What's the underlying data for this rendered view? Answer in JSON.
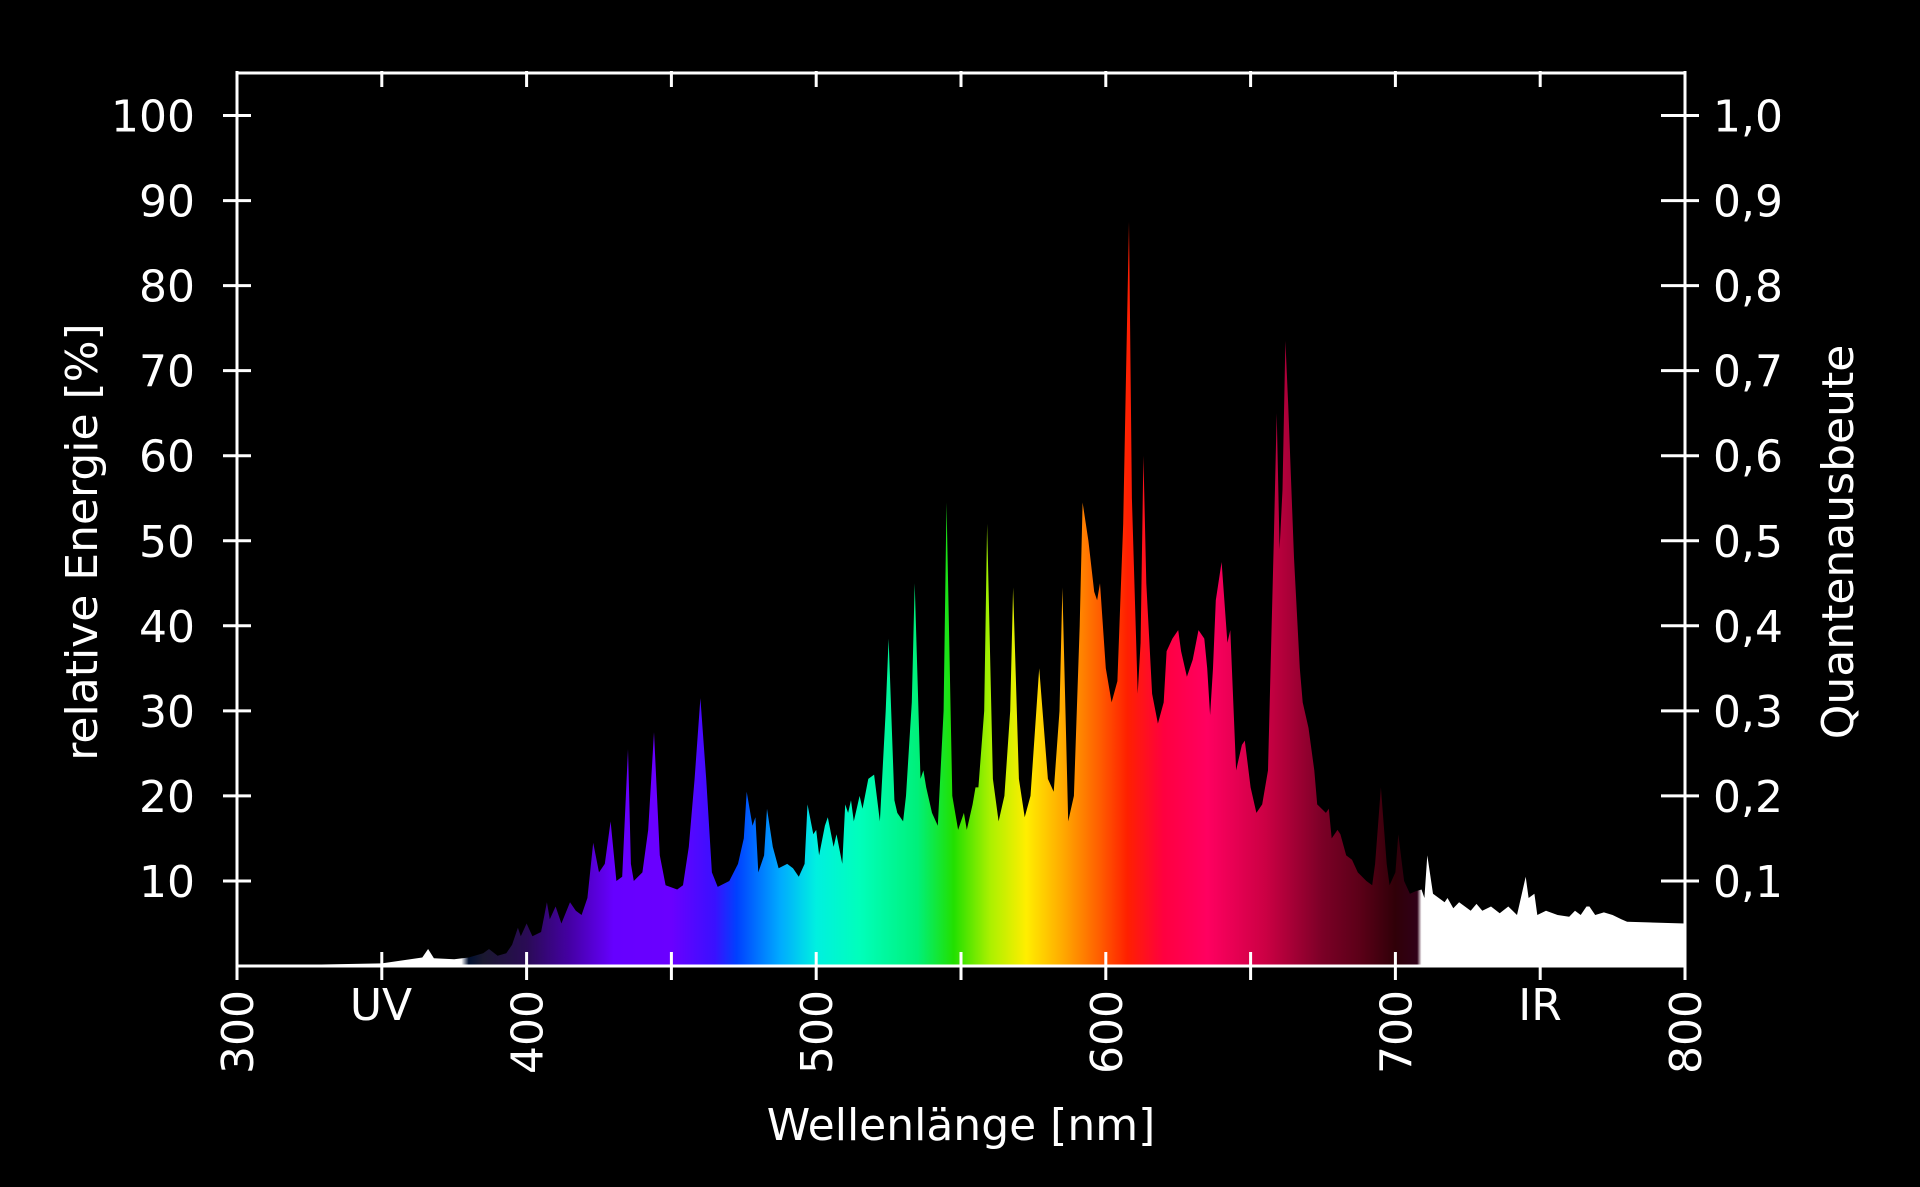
{
  "chart_data": {
    "type": "area",
    "xlabel": "Wellenlänge [nm]",
    "ylabel": "relative Energie [%]",
    "y2label": "Quantenausbeute",
    "xlim": [
      300,
      800
    ],
    "ylim": [
      0,
      105
    ],
    "y2lim": [
      0,
      1.05
    ],
    "x_ticks": [
      "300",
      "400",
      "500",
      "600",
      "700",
      "800"
    ],
    "y_ticks": [
      "10",
      "20",
      "30",
      "40",
      "50",
      "60",
      "70",
      "80",
      "90",
      "100"
    ],
    "y2_ticks": [
      "0,1",
      "0,2",
      "0,3",
      "0,4",
      "0,5",
      "0,6",
      "0,7",
      "0,8",
      "0,9",
      "1,0"
    ],
    "band_labels": [
      "UV",
      "IR"
    ],
    "background": "#000000",
    "outside_visible_color": "#ffffff",
    "visible_range_nm": [
      380,
      710
    ],
    "spectrum": [
      [
        300,
        0
      ],
      [
        350,
        0.3
      ],
      [
        364,
        1.0
      ],
      [
        366,
        2.0
      ],
      [
        368,
        0.9
      ],
      [
        375,
        0.8
      ],
      [
        380,
        1.0
      ],
      [
        385,
        1.5
      ],
      [
        387,
        2.0
      ],
      [
        390,
        1.2
      ],
      [
        393,
        1.5
      ],
      [
        395,
        2.5
      ],
      [
        397,
        4.5
      ],
      [
        398,
        3.5
      ],
      [
        400,
        5.0
      ],
      [
        402,
        3.5
      ],
      [
        405,
        4.0
      ],
      [
        407,
        7.5
      ],
      [
        408,
        5.5
      ],
      [
        410,
        7.0
      ],
      [
        412,
        5.0
      ],
      [
        415,
        7.5
      ],
      [
        417,
        6.5
      ],
      [
        419,
        6.0
      ],
      [
        421,
        8.0
      ],
      [
        423,
        14.5
      ],
      [
        425,
        11.0
      ],
      [
        427,
        12.0
      ],
      [
        429,
        17.0
      ],
      [
        431,
        10.0
      ],
      [
        433,
        10.5
      ],
      [
        435,
        25.5
      ],
      [
        436,
        12.0
      ],
      [
        437,
        10.0
      ],
      [
        440,
        11.0
      ],
      [
        442,
        16.0
      ],
      [
        444,
        27.5
      ],
      [
        446,
        13.0
      ],
      [
        448,
        9.5
      ],
      [
        452,
        9.0
      ],
      [
        454,
        9.5
      ],
      [
        456,
        14.0
      ],
      [
        458,
        22.0
      ],
      [
        460,
        31.5
      ],
      [
        462,
        22.0
      ],
      [
        464,
        11.0
      ],
      [
        466,
        9.3
      ],
      [
        470,
        10.0
      ],
      [
        473,
        12.0
      ],
      [
        475,
        15.0
      ],
      [
        476,
        20.5
      ],
      [
        478,
        16.5
      ],
      [
        479,
        17.5
      ],
      [
        480,
        11.0
      ],
      [
        482,
        13.0
      ],
      [
        483,
        18.5
      ],
      [
        485,
        14.0
      ],
      [
        487,
        11.5
      ],
      [
        490,
        12.0
      ],
      [
        492,
        11.5
      ],
      [
        494,
        10.5
      ],
      [
        496,
        12.0
      ],
      [
        497,
        19.0
      ],
      [
        499,
        15.5
      ],
      [
        500,
        16.0
      ],
      [
        501,
        13.0
      ],
      [
        503,
        16.5
      ],
      [
        504,
        17.5
      ],
      [
        506,
        14.0
      ],
      [
        507,
        15.5
      ],
      [
        509,
        12.0
      ],
      [
        510,
        19.0
      ],
      [
        511,
        18.0
      ],
      [
        512,
        19.5
      ],
      [
        513,
        17.0
      ],
      [
        515,
        20.0
      ],
      [
        516,
        18.5
      ],
      [
        518,
        22.0
      ],
      [
        520,
        22.5
      ],
      [
        522,
        17.0
      ],
      [
        524,
        30.0
      ],
      [
        525,
        38.5
      ],
      [
        527,
        19.5
      ],
      [
        528,
        18.0
      ],
      [
        530,
        17.0
      ],
      [
        531,
        20.0
      ],
      [
        533,
        31.0
      ],
      [
        534,
        45.0
      ],
      [
        536,
        22.0
      ],
      [
        537,
        23.0
      ],
      [
        538,
        21.0
      ],
      [
        540,
        18.0
      ],
      [
        542,
        16.5
      ],
      [
        544,
        30.0
      ],
      [
        545,
        54.5
      ],
      [
        547,
        20.0
      ],
      [
        549,
        16.0
      ],
      [
        551,
        18.0
      ],
      [
        552,
        16.0
      ],
      [
        554,
        19.0
      ],
      [
        555,
        21.0
      ],
      [
        556,
        21.0
      ],
      [
        558,
        30.0
      ],
      [
        559,
        52.0
      ],
      [
        561,
        22.0
      ],
      [
        563,
        17.0
      ],
      [
        565,
        20.0
      ],
      [
        567,
        30.0
      ],
      [
        568,
        44.5
      ],
      [
        570,
        22.0
      ],
      [
        572,
        17.5
      ],
      [
        574,
        20.0
      ],
      [
        576,
        30.0
      ],
      [
        577,
        35.0
      ],
      [
        580,
        22.0
      ],
      [
        582,
        20.5
      ],
      [
        584,
        30.0
      ],
      [
        585,
        44.5
      ],
      [
        587,
        17.0
      ],
      [
        589,
        20.0
      ],
      [
        591,
        40.0
      ],
      [
        592,
        54.5
      ],
      [
        594,
        50.0
      ],
      [
        596,
        44.0
      ],
      [
        597,
        43.0
      ],
      [
        598,
        45.0
      ],
      [
        600,
        35.0
      ],
      [
        602,
        31.0
      ],
      [
        604,
        33.5
      ],
      [
        606,
        52.0
      ],
      [
        607,
        70.0
      ],
      [
        608,
        87.5
      ],
      [
        609,
        55.0
      ],
      [
        611,
        32.0
      ],
      [
        612,
        38.0
      ],
      [
        613,
        60.0
      ],
      [
        614,
        45.0
      ],
      [
        616,
        32.0
      ],
      [
        618,
        28.5
      ],
      [
        620,
        31.0
      ],
      [
        621,
        37.0
      ],
      [
        623,
        38.5
      ],
      [
        625,
        39.5
      ],
      [
        626,
        37.0
      ],
      [
        628,
        34.0
      ],
      [
        630,
        36.0
      ],
      [
        632,
        39.5
      ],
      [
        634,
        38.5
      ],
      [
        635,
        35.0
      ],
      [
        636,
        29.5
      ],
      [
        637,
        35.0
      ],
      [
        638,
        43.0
      ],
      [
        640,
        47.5
      ],
      [
        642,
        38.0
      ],
      [
        643,
        39.5
      ],
      [
        645,
        23.0
      ],
      [
        647,
        26.0
      ],
      [
        648,
        26.5
      ],
      [
        650,
        21.0
      ],
      [
        652,
        18.0
      ],
      [
        654,
        19.0
      ],
      [
        656,
        23.0
      ],
      [
        658,
        50.0
      ],
      [
        659,
        65.0
      ],
      [
        660,
        49.0
      ],
      [
        661,
        56.0
      ],
      [
        662,
        73.5
      ],
      [
        663,
        66.0
      ],
      [
        665,
        48.0
      ],
      [
        667,
        35.0
      ],
      [
        668,
        31.0
      ],
      [
        670,
        28.0
      ],
      [
        672,
        23.0
      ],
      [
        673,
        19.0
      ],
      [
        676,
        18.0
      ],
      [
        677,
        18.5
      ],
      [
        678,
        15.0
      ],
      [
        680,
        16.0
      ],
      [
        681,
        15.5
      ],
      [
        683,
        13.0
      ],
      [
        685,
        12.5
      ],
      [
        687,
        11.0
      ],
      [
        690,
        10.0
      ],
      [
        692,
        9.5
      ],
      [
        693,
        12.0
      ],
      [
        695,
        21.0
      ],
      [
        697,
        12.0
      ],
      [
        698,
        9.5
      ],
      [
        700,
        11.0
      ],
      [
        701,
        15.5
      ],
      [
        703,
        10.0
      ],
      [
        705,
        8.5
      ],
      [
        707,
        8.8
      ],
      [
        709,
        9.0
      ],
      [
        710,
        8.0
      ],
      [
        711,
        13.0
      ],
      [
        713,
        8.5
      ],
      [
        715,
        8.0
      ],
      [
        717,
        7.5
      ],
      [
        718,
        8.0
      ],
      [
        720,
        6.8
      ],
      [
        722,
        7.5
      ],
      [
        724,
        7.0
      ],
      [
        726,
        6.5
      ],
      [
        728,
        7.3
      ],
      [
        730,
        6.5
      ],
      [
        733,
        7.0
      ],
      [
        736,
        6.2
      ],
      [
        739,
        7.0
      ],
      [
        742,
        6.0
      ],
      [
        745,
        10.5
      ],
      [
        746,
        8.0
      ],
      [
        748,
        8.5
      ],
      [
        749,
        6.0
      ],
      [
        752,
        6.5
      ],
      [
        756,
        6.0
      ],
      [
        760,
        5.8
      ],
      [
        762,
        6.5
      ],
      [
        764,
        6.0
      ],
      [
        766,
        7.0
      ],
      [
        767,
        7.0
      ],
      [
        769,
        6.0
      ],
      [
        772,
        6.3
      ],
      [
        775,
        6.0
      ],
      [
        778,
        5.5
      ],
      [
        780,
        5.2
      ],
      [
        800,
        5.0
      ]
    ]
  }
}
